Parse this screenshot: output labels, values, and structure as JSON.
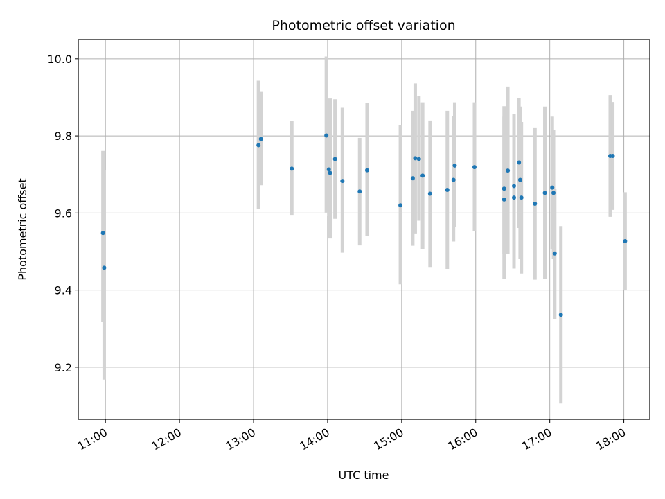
{
  "chart_data": {
    "type": "scatter",
    "title": "Photometric offset variation",
    "xlabel": "UTC time",
    "ylabel": "Photometric offset",
    "x_tick_labels": [
      "11:00",
      "12:00",
      "13:00",
      "14:00",
      "15:00",
      "16:00",
      "17:00",
      "18:00"
    ],
    "y_tick_labels": [
      "9.2",
      "9.4",
      "9.6",
      "9.8",
      "10.0"
    ],
    "y_ticks": [
      9.2,
      9.4,
      9.6,
      9.8,
      10.0
    ],
    "xlim": [
      "10:38",
      "18:21"
    ],
    "ylim": [
      9.065,
      10.05
    ],
    "grid": true,
    "colors": {
      "marker": "#1f77b4",
      "errorbar": "#d3d3d3",
      "grid": "#b0b0b0"
    },
    "points": [
      {
        "x": "10:58",
        "y": 9.548,
        "yerr_low": 0.23,
        "yerr_high": 0.213
      },
      {
        "x": "10:59",
        "y": 9.458,
        "yerr_low": 0.29,
        "yerr_high": 0.254
      },
      {
        "x": "13:04",
        "y": 9.776,
        "yerr_low": 0.166,
        "yerr_high": 0.167
      },
      {
        "x": "13:06",
        "y": 9.792,
        "yerr_low": 0.12,
        "yerr_high": 0.122
      },
      {
        "x": "13:31",
        "y": 9.715,
        "yerr_low": 0.12,
        "yerr_high": 0.124
      },
      {
        "x": "13:59",
        "y": 9.801,
        "yerr_low": 0.2,
        "yerr_high": 0.205
      },
      {
        "x": "14:01",
        "y": 9.713,
        "yerr_low": 0.12,
        "yerr_high": 0.14
      },
      {
        "x": "14:02",
        "y": 9.704,
        "yerr_low": 0.17,
        "yerr_high": 0.193
      },
      {
        "x": "14:06",
        "y": 9.74,
        "yerr_low": 0.155,
        "yerr_high": 0.155
      },
      {
        "x": "14:12",
        "y": 9.683,
        "yerr_low": 0.186,
        "yerr_high": 0.19
      },
      {
        "x": "14:26",
        "y": 9.656,
        "yerr_low": 0.14,
        "yerr_high": 0.139
      },
      {
        "x": "14:32",
        "y": 9.711,
        "yerr_low": 0.17,
        "yerr_high": 0.174
      },
      {
        "x": "14:59",
        "y": 9.62,
        "yerr_low": 0.205,
        "yerr_high": 0.208
      },
      {
        "x": "15:09",
        "y": 9.69,
        "yerr_low": 0.175,
        "yerr_high": 0.175
      },
      {
        "x": "15:11",
        "y": 9.742,
        "yerr_low": 0.195,
        "yerr_high": 0.194
      },
      {
        "x": "15:14",
        "y": 9.74,
        "yerr_low": 0.16,
        "yerr_high": 0.163
      },
      {
        "x": "15:17",
        "y": 9.697,
        "yerr_low": 0.19,
        "yerr_high": 0.19
      },
      {
        "x": "15:23",
        "y": 9.65,
        "yerr_low": 0.19,
        "yerr_high": 0.19
      },
      {
        "x": "15:37",
        "y": 9.66,
        "yerr_low": 0.205,
        "yerr_high": 0.205
      },
      {
        "x": "15:42",
        "y": 9.686,
        "yerr_low": 0.16,
        "yerr_high": 0.165
      },
      {
        "x": "15:43",
        "y": 9.723,
        "yerr_low": 0.16,
        "yerr_high": 0.164
      },
      {
        "x": "15:59",
        "y": 9.719,
        "yerr_low": 0.167,
        "yerr_high": 0.168
      },
      {
        "x": "16:23",
        "y": 9.663,
        "yerr_low": 0.17,
        "yerr_high": 0.214
      },
      {
        "x": "16:23",
        "y": 9.635,
        "yerr_low": 0.206,
        "yerr_high": 0.215
      },
      {
        "x": "16:26",
        "y": 9.71,
        "yerr_low": 0.217,
        "yerr_high": 0.218
      },
      {
        "x": "16:31",
        "y": 9.67,
        "yerr_low": 0.214,
        "yerr_high": 0.187
      },
      {
        "x": "16:31",
        "y": 9.64,
        "yerr_low": 0.16,
        "yerr_high": 0.19
      },
      {
        "x": "16:35",
        "y": 9.731,
        "yerr_low": 0.17,
        "yerr_high": 0.167
      },
      {
        "x": "16:36",
        "y": 9.686,
        "yerr_low": 0.205,
        "yerr_high": 0.19
      },
      {
        "x": "16:37",
        "y": 9.64,
        "yerr_low": 0.197,
        "yerr_high": 0.196
      },
      {
        "x": "16:48",
        "y": 9.624,
        "yerr_low": 0.197,
        "yerr_high": 0.198
      },
      {
        "x": "16:56",
        "y": 9.652,
        "yerr_low": 0.224,
        "yerr_high": 0.224
      },
      {
        "x": "17:02",
        "y": 9.666,
        "yerr_low": 0.16,
        "yerr_high": 0.184
      },
      {
        "x": "17:03",
        "y": 9.652,
        "yerr_low": 0.17,
        "yerr_high": 0.163
      },
      {
        "x": "17:04",
        "y": 9.495,
        "yerr_low": 0.17,
        "yerr_high": 0.167
      },
      {
        "x": "17:09",
        "y": 9.336,
        "yerr_low": 0.23,
        "yerr_high": 0.23
      },
      {
        "x": "17:49",
        "y": 9.748,
        "yerr_low": 0.158,
        "yerr_high": 0.158
      },
      {
        "x": "17:51",
        "y": 9.748,
        "yerr_low": 0.14,
        "yerr_high": 0.14
      },
      {
        "x": "18:01",
        "y": 9.527,
        "yerr_low": 0.127,
        "yerr_high": 0.127
      }
    ]
  }
}
